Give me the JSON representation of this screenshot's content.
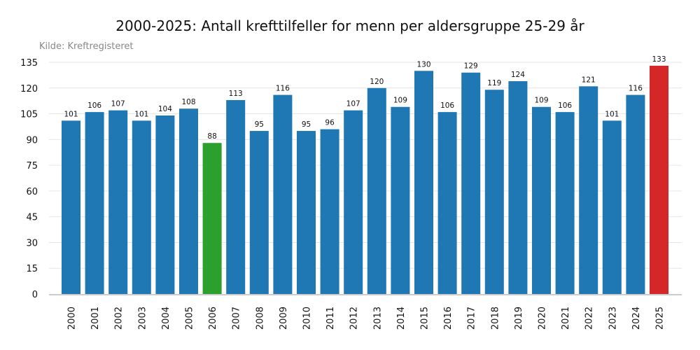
{
  "chart_data": {
    "type": "bar",
    "title": "2000-2025: Antall krefttilfeller for menn per aldersgruppe 25-29 år",
    "source": "Kilde: Kreftregisteret",
    "categories": [
      "2000",
      "2001",
      "2002",
      "2003",
      "2004",
      "2005",
      "2006",
      "2007",
      "2008",
      "2009",
      "2010",
      "2011",
      "2012",
      "2013",
      "2014",
      "2015",
      "2016",
      "2017",
      "2018",
      "2019",
      "2020",
      "2021",
      "2022",
      "2023",
      "2024",
      "2025"
    ],
    "values": [
      101,
      106,
      107,
      101,
      104,
      108,
      88,
      113,
      95,
      116,
      95,
      96,
      107,
      120,
      109,
      130,
      106,
      129,
      119,
      124,
      109,
      106,
      121,
      101,
      116,
      133
    ],
    "ylim": [
      0,
      135
    ],
    "yticks": [
      0,
      15,
      30,
      45,
      60,
      75,
      90,
      105,
      120,
      135
    ],
    "grid": true,
    "colors": {
      "default": "#1f77b4",
      "min_highlight": "#2ca02c",
      "max_highlight": "#d62728"
    }
  }
}
